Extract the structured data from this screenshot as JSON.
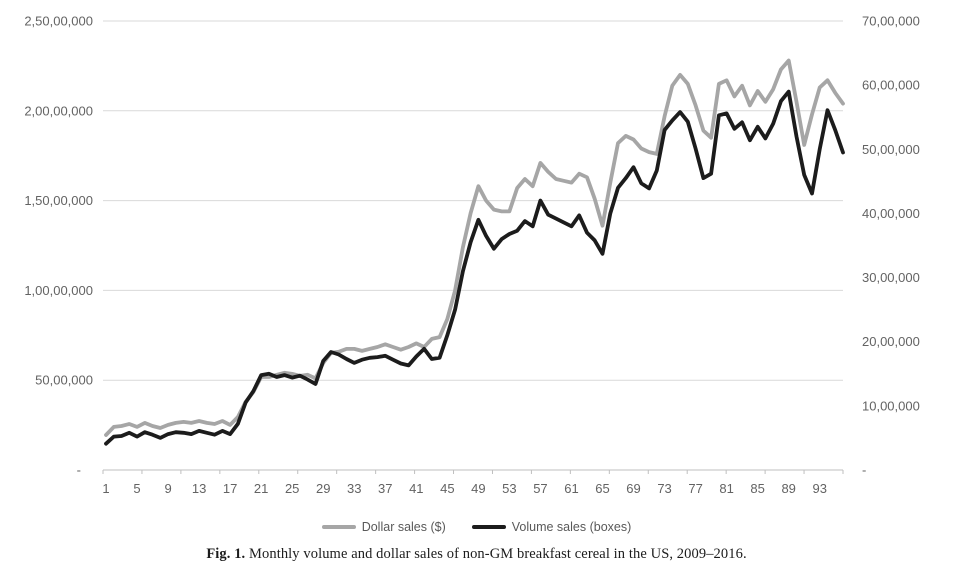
{
  "figure": {
    "caption_prefix": "Fig. 1.",
    "caption_text": " Monthly volume and dollar sales of non-GM breakfast cereal in the US, 2009–2016."
  },
  "legend": {
    "items": [
      {
        "label": "Dollar sales ($)",
        "color": "#a6a6a6"
      },
      {
        "label": "Volume sales (boxes)",
        "color": "#1c1c1c"
      }
    ]
  },
  "chart_data": {
    "type": "line",
    "title": "",
    "xlabel": "",
    "ylabel_left": "",
    "ylabel_right": "",
    "months": 96,
    "grid": true,
    "legend_position": "bottom",
    "colors": {
      "grid": "#d9d9d9",
      "axis": "#bfbfbf",
      "text": "#636363"
    },
    "left_axis": {
      "applies_to": "Dollar sales ($)",
      "max": 25000000,
      "min": 0,
      "ticks": [
        {
          "label": "2,50,00,000",
          "value": 25000000
        },
        {
          "label": "2,00,00,000",
          "value": 20000000
        },
        {
          "label": "1,50,00,000",
          "value": 15000000
        },
        {
          "label": "1,00,00,000",
          "value": 10000000
        },
        {
          "label": "50,00,000",
          "value": 5000000
        },
        {
          "label": "-",
          "value": 0
        }
      ]
    },
    "right_axis": {
      "applies_to": "Volume sales (boxes)",
      "max": 7000000,
      "min": 0,
      "ticks": [
        {
          "label": "70,00,000",
          "value": 7000000
        },
        {
          "label": "60,00,000",
          "value": 6000000
        },
        {
          "label": "50,00,000",
          "value": 5000000
        },
        {
          "label": "40,00,000",
          "value": 4000000
        },
        {
          "label": "30,00,000",
          "value": 3000000
        },
        {
          "label": "20,00,000",
          "value": 2000000
        },
        {
          "label": "10,00,000",
          "value": 1000000
        },
        {
          "label": "-",
          "value": 0
        }
      ]
    },
    "x_ticks": [
      {
        "label": "1",
        "month": 1
      },
      {
        "label": "5",
        "month": 5
      },
      {
        "label": "9",
        "month": 9
      },
      {
        "label": "13",
        "month": 13
      },
      {
        "label": "17",
        "month": 17
      },
      {
        "label": "21",
        "month": 21
      },
      {
        "label": "25",
        "month": 25
      },
      {
        "label": "29",
        "month": 29
      },
      {
        "label": "33",
        "month": 33
      },
      {
        "label": "37",
        "month": 37
      },
      {
        "label": "41",
        "month": 41
      },
      {
        "label": "45",
        "month": 45
      },
      {
        "label": "49",
        "month": 49
      },
      {
        "label": "53",
        "month": 53
      },
      {
        "label": "57",
        "month": 57
      },
      {
        "label": "61",
        "month": 61
      },
      {
        "label": "65",
        "month": 65
      },
      {
        "label": "69",
        "month": 69
      },
      {
        "label": "73",
        "month": 73
      },
      {
        "label": "77",
        "month": 77
      },
      {
        "label": "81",
        "month": 81
      },
      {
        "label": "85",
        "month": 85
      },
      {
        "label": "89",
        "month": 89
      },
      {
        "label": "93",
        "month": 93
      }
    ],
    "series": [
      {
        "name": "Dollar sales ($)",
        "axis": "left",
        "color": "#a6a6a6",
        "values": [
          1950000,
          2400000,
          2450000,
          2560000,
          2400000,
          2620000,
          2450000,
          2340000,
          2510000,
          2620000,
          2680000,
          2620000,
          2730000,
          2620000,
          2560000,
          2730000,
          2510000,
          2950000,
          3790000,
          4350000,
          5180000,
          5180000,
          5300000,
          5410000,
          5350000,
          5240000,
          5300000,
          5100000,
          5960000,
          6520000,
          6580000,
          6740000,
          6740000,
          6630000,
          6740000,
          6850000,
          7000000,
          6850000,
          6700000,
          6850000,
          7050000,
          6850000,
          7300000,
          7400000,
          8400000,
          10000000,
          12400000,
          14300000,
          15800000,
          15000000,
          14500000,
          14400000,
          14400000,
          15700000,
          16200000,
          15800000,
          17100000,
          16600000,
          16200000,
          16100000,
          16000000,
          16500000,
          16300000,
          15100000,
          13600000,
          16000000,
          18200000,
          18600000,
          18400000,
          17900000,
          17700000,
          17600000,
          19700000,
          21400000,
          22000000,
          21500000,
          20300000,
          18900000,
          18500000,
          21500000,
          21700000,
          20800000,
          21400000,
          20300000,
          21100000,
          20500000,
          21200000,
          22300000,
          22800000,
          20500000,
          18100000,
          19800000,
          21300000,
          21700000,
          21000000,
          20400000
        ]
      },
      {
        "name": "Volume sales (boxes)",
        "axis": "right",
        "color": "#1c1c1c",
        "values": [
          410000,
          520000,
          530000,
          580000,
          520000,
          590000,
          550000,
          500000,
          560000,
          590000,
          580000,
          560000,
          610000,
          580000,
          550000,
          610000,
          560000,
          720000,
          1050000,
          1230000,
          1480000,
          1500000,
          1450000,
          1480000,
          1440000,
          1470000,
          1410000,
          1340000,
          1700000,
          1840000,
          1800000,
          1730000,
          1670000,
          1720000,
          1750000,
          1760000,
          1780000,
          1720000,
          1660000,
          1630000,
          1770000,
          1890000,
          1730000,
          1750000,
          2100000,
          2500000,
          3100000,
          3550000,
          3900000,
          3650000,
          3450000,
          3600000,
          3680000,
          3730000,
          3880000,
          3800000,
          4200000,
          3980000,
          3920000,
          3860000,
          3800000,
          3970000,
          3700000,
          3580000,
          3370000,
          4000000,
          4400000,
          4550000,
          4720000,
          4470000,
          4390000,
          4670000,
          5300000,
          5450000,
          5580000,
          5430000,
          5010000,
          4550000,
          4620000,
          5530000,
          5560000,
          5320000,
          5420000,
          5140000,
          5350000,
          5170000,
          5400000,
          5750000,
          5900000,
          5200000,
          4600000,
          4310000,
          5000000,
          5610000,
          5300000,
          4950000
        ]
      }
    ]
  }
}
